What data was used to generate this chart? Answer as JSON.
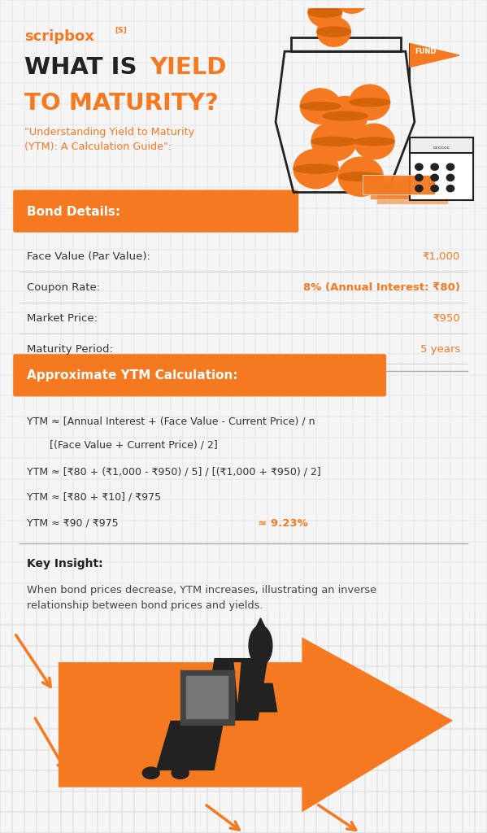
{
  "bg_color": "#f5f5f5",
  "orange": "#F47920",
  "dark": "#222222",
  "gray_text": "#555555",
  "light_gray": "#e8e8e8",
  "scripbox_text": "scripbox",
  "bond_header": "Bond Details:",
  "bond_rows": [
    {
      "label": "Face Value (Par Value):",
      "value": "₹1,000",
      "bold": false
    },
    {
      "label": "Coupon Rate:",
      "value": "8% (Annual Interest: ₹80)",
      "bold": true
    },
    {
      "label": "Market Price:",
      "value": "₹950",
      "bold": false
    },
    {
      "label": "Maturity Period:",
      "value": "5 years",
      "bold": false
    }
  ],
  "ytm_header": "Approximate YTM Calculation:",
  "ytm_line1": "YTM ≈ [Annual Interest + (Face Value - Current Price) / n",
  "ytm_line2": "       [(Face Value + Current Price) / 2]",
  "ytm_line3": "YTM ≈ [₹80 + (₹1,000 - ₹950) / 5] / [(₹1,000 + ₹950) / 2]",
  "ytm_line4": "YTM ≈ [₹80 + ₹10] / ₹975",
  "ytm_line5a": "YTM ≈ ₹90 / ₹975",
  "ytm_line5b": "  ≈ 9.23%",
  "key_insight_label": "Key Insight:",
  "key_insight_text": "When bond prices decrease, YTM increases, illustrating an inverse\nrelationship between bond prices and yields."
}
